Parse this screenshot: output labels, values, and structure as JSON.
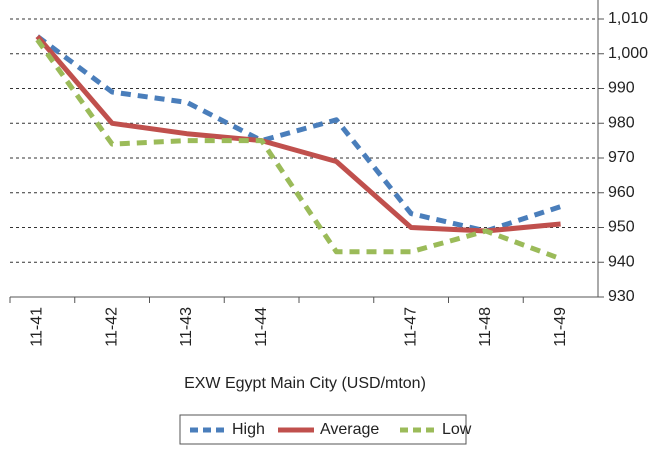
{
  "chart_data": {
    "type": "line",
    "xlabel": "EXW Egypt Main City (USD/mton)",
    "categories": [
      "11-41",
      "11-42",
      "11-43",
      "11-44",
      null,
      "11-47",
      "11-48",
      "11-49"
    ],
    "series": [
      {
        "name": "High",
        "color": "#4a7ebb",
        "dash": true,
        "values": [
          1005,
          989,
          986,
          975,
          981,
          954,
          949,
          956
        ]
      },
      {
        "name": "Average",
        "color": "#c0504d",
        "dash": false,
        "values": [
          1005,
          980,
          977,
          975,
          969,
          950,
          949,
          951
        ]
      },
      {
        "name": "Low",
        "color": "#9bbb59",
        "dash": true,
        "values": [
          1004,
          974,
          975,
          975,
          943,
          943,
          949,
          941
        ]
      }
    ],
    "ylim": [
      930,
      1010
    ],
    "yticks": [
      930,
      940,
      950,
      960,
      970,
      980,
      990,
      {
        "value": 1000,
        "label": "1,000"
      },
      {
        "value": 1010,
        "label": "1,010"
      }
    ],
    "grid": true,
    "y_axis_side": "right",
    "legend": "bottom"
  }
}
